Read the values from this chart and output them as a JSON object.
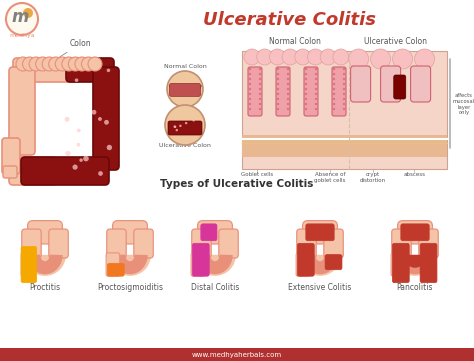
{
  "title": "Ulcerative Colitis",
  "subtitle": "Types of Ulcerative Colitis",
  "types": [
    "Proctitis",
    "Proctosigmoiditis",
    "Distal Colitis",
    "Extensive Colitis",
    "Pancolitis"
  ],
  "type_highlight_colors": [
    "#F5A800",
    "#F07820",
    "#D8359A",
    "#C0392B",
    "#C0392B"
  ],
  "colon_fill": "#F5C4A8",
  "colon_edge": "#E8907A",
  "colon_inner": "#FAEAE0",
  "ulcer_dark": "#8B1010",
  "bg_color": "#FFFFFF",
  "footer_bg": "#B03030",
  "footer_text": "www.medhyaherbals.com",
  "top_labels": [
    "Normal Colon",
    "Ulcerative Colon"
  ],
  "cell_labels": [
    "Goblet cells",
    "Absence of\ngoblet cells",
    "crypt\ndistortion",
    "abscess"
  ],
  "side_label": "affects\nmucosal\nlayer\nonly",
  "title_color": "#C0392B",
  "label_color": "#555555",
  "logo_circle_color": "#E8907A",
  "logo_text_color": "#E8A030",
  "micro_bg": "#F5D5C8",
  "micro_villi_fill": "#F0A0A8",
  "micro_villi_edge": "#D06070",
  "micro_base_fill": "#E8B890",
  "micro_ulcer_fill": "#C05060",
  "micro_pink_top": "#F8C0C0"
}
